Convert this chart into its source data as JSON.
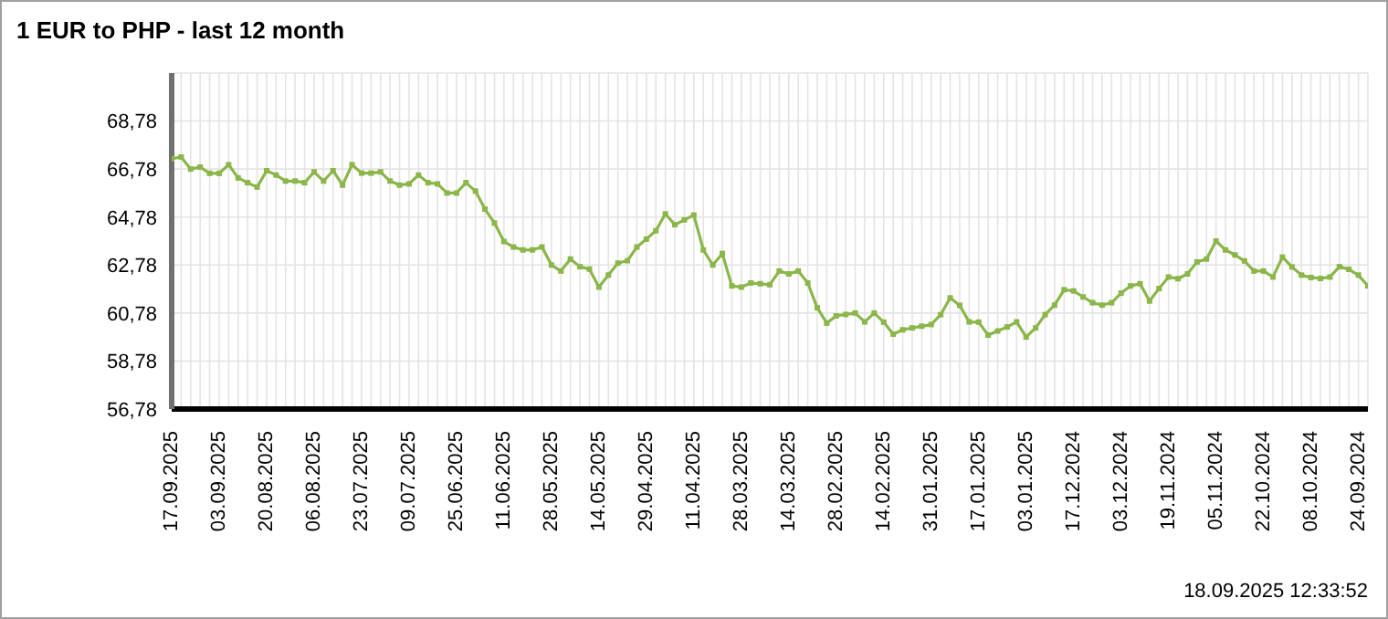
{
  "chart_data": {
    "type": "line",
    "title": "1 EUR to PHP - last 12 month",
    "categories": [
      "17.09.2025",
      null,
      null,
      null,
      null,
      "03.09.2025",
      null,
      null,
      null,
      null,
      "20.08.2025",
      null,
      null,
      null,
      null,
      "06.08.2025",
      null,
      null,
      null,
      null,
      "23.07.2025",
      null,
      null,
      null,
      null,
      "09.07.2025",
      null,
      null,
      null,
      null,
      "25.06.2025",
      null,
      null,
      null,
      null,
      "11.06.2025",
      null,
      null,
      null,
      null,
      "28.05.2025",
      null,
      null,
      null,
      null,
      "14.05.2025",
      null,
      null,
      null,
      null,
      "29.04.2025",
      null,
      null,
      null,
      null,
      "11.04.2025",
      null,
      null,
      null,
      null,
      "28.03.2025",
      null,
      null,
      null,
      null,
      "14.03.2025",
      null,
      null,
      null,
      null,
      "28.02.2025",
      null,
      null,
      null,
      null,
      "14.02.2025",
      null,
      null,
      null,
      null,
      "31.01.2025",
      null,
      null,
      null,
      null,
      "17.01.2025",
      null,
      null,
      null,
      null,
      "03.01.2025",
      null,
      null,
      null,
      null,
      "17.12.2024",
      null,
      null,
      null,
      null,
      "03.12.2024",
      null,
      null,
      null,
      null,
      "19.11.2024",
      null,
      null,
      null,
      null,
      "05.11.2024",
      null,
      null,
      null,
      null,
      "22.10.2024",
      null,
      null,
      null,
      null,
      "08.10.2024",
      null,
      null,
      null,
      null,
      "24.09.2024",
      null
    ],
    "series": [
      {
        "color": "#8ab64a",
        "values": [
          67.21,
          67.28,
          66.78,
          66.86,
          66.6,
          66.6,
          66.96,
          66.41,
          66.21,
          66.03,
          66.71,
          66.53,
          66.28,
          66.28,
          66.21,
          66.66,
          66.28,
          66.71,
          66.11,
          66.96,
          66.61,
          66.61,
          66.66,
          66.28,
          66.11,
          66.16,
          66.53,
          66.21,
          66.16,
          65.78,
          65.78,
          66.21,
          65.86,
          65.11,
          64.53,
          63.76,
          63.53,
          63.41,
          63.41,
          63.53,
          62.78,
          62.53,
          63.03,
          62.71,
          62.61,
          61.86,
          62.36,
          62.86,
          62.96,
          63.53,
          63.86,
          64.21,
          64.91,
          64.46,
          64.66,
          64.86,
          63.41,
          62.78,
          63.26,
          61.91,
          61.86,
          62.03,
          62.0,
          61.96,
          62.53,
          62.41,
          62.53,
          62.03,
          61.0,
          60.36,
          60.66,
          60.72,
          60.78,
          60.41,
          60.78,
          60.4,
          59.9,
          60.08,
          60.16,
          60.23,
          60.3,
          60.71,
          61.41,
          61.1,
          60.41,
          60.4,
          59.86,
          60.03,
          60.2,
          60.41,
          59.78,
          60.16,
          60.71,
          61.11,
          61.75,
          61.7,
          61.45,
          61.21,
          61.11,
          61.21,
          61.61,
          61.91,
          62.0,
          61.28,
          61.8,
          62.28,
          62.21,
          62.41,
          62.91,
          63.03,
          63.78,
          63.41,
          63.2,
          62.95,
          62.53,
          62.53,
          62.28,
          63.11,
          62.7,
          62.36,
          62.26,
          62.22,
          62.28,
          62.71,
          62.6,
          62.36,
          61.91
        ]
      }
    ],
    "ylim": [
      56.78,
      70.78
    ],
    "yticks": [
      {
        "value": 56.78,
        "label": "56,78"
      },
      {
        "value": 58.78,
        "label": "58,78"
      },
      {
        "value": 60.78,
        "label": "60,78"
      },
      {
        "value": 62.78,
        "label": "62,78"
      },
      {
        "value": 64.78,
        "label": "64,78"
      },
      {
        "value": 66.78,
        "label": "66,78"
      },
      {
        "value": 68.78,
        "label": "68,78"
      }
    ],
    "grid": true,
    "legend": false,
    "marker": "square",
    "annotations": [
      "18.09.2025 12:33:52"
    ]
  }
}
